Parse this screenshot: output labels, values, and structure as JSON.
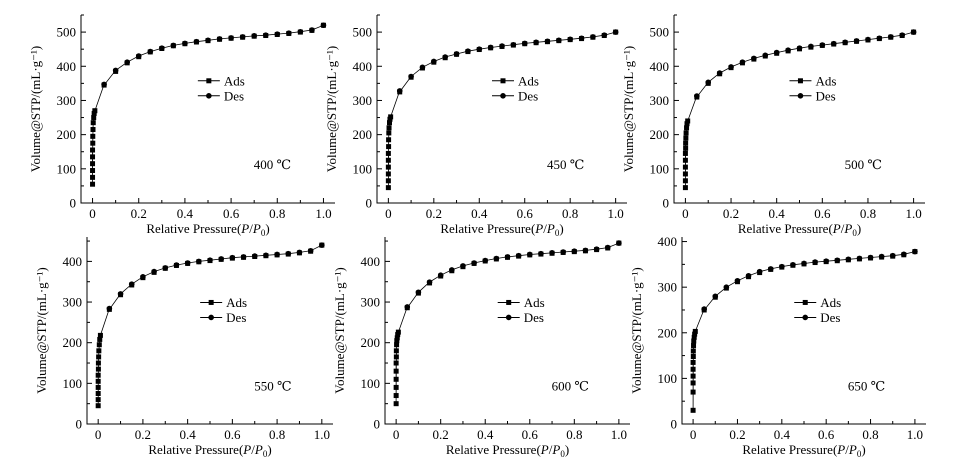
{
  "chart_data": [
    {
      "type": "scatter",
      "annotation": "400 ℃",
      "xlabel": "Relative Pressure(P/P0)",
      "ylabel": "Volume@STP/(mL·g⁻¹)",
      "xlim": [
        -0.05,
        1.05
      ],
      "ylim": [
        0,
        550
      ],
      "xticks": [
        0,
        0.2,
        0.4,
        0.6,
        0.8,
        1.0
      ],
      "xtick_labels": [
        "0",
        "0.2",
        "0.4",
        "0.6",
        "0.8",
        "1.0"
      ],
      "yticks": [
        0,
        100,
        200,
        300,
        400,
        500
      ],
      "ytick_labels": [
        "0",
        "100",
        "200",
        "300",
        "400",
        "500"
      ],
      "legend": [
        "Ads",
        "Des"
      ],
      "series": [
        {
          "name": "Ads",
          "marker": "square",
          "x": [
            0.0,
            0.0,
            0.0,
            0.0,
            0.0,
            0.0,
            0.001,
            0.001,
            0.002,
            0.003,
            0.005,
            0.007,
            0.01,
            0.05,
            0.1,
            0.15,
            0.2,
            0.25,
            0.3,
            0.35,
            0.4,
            0.45,
            0.5,
            0.55,
            0.6,
            0.65,
            0.7,
            0.75,
            0.8,
            0.85,
            0.9,
            0.95,
            1.0
          ],
          "y": [
            55,
            75,
            95,
            115,
            135,
            155,
            175,
            195,
            215,
            235,
            250,
            262,
            270,
            345,
            385,
            410,
            428,
            442,
            452,
            460,
            466,
            471,
            475,
            479,
            482,
            485,
            488,
            490,
            493,
            496,
            500,
            505,
            520
          ]
        },
        {
          "name": "Des",
          "marker": "circle",
          "x": [
            1.0,
            0.95,
            0.9,
            0.85,
            0.8,
            0.75,
            0.7,
            0.65,
            0.6,
            0.55,
            0.5,
            0.45,
            0.4,
            0.35,
            0.3,
            0.25,
            0.2,
            0.15,
            0.1,
            0.05
          ],
          "y": [
            520,
            506,
            501,
            497,
            494,
            491,
            489,
            486,
            483,
            480,
            476,
            472,
            467,
            461,
            453,
            443,
            430,
            412,
            388,
            347
          ]
        }
      ]
    },
    {
      "type": "scatter",
      "annotation": "450 ℃",
      "xlabel": "Relative Pressure(P/P0)",
      "ylabel": "Volume@STP/(mL·g⁻¹)",
      "xlim": [
        -0.05,
        1.05
      ],
      "ylim": [
        0,
        550
      ],
      "xticks": [
        0,
        0.2,
        0.4,
        0.6,
        0.8,
        1.0
      ],
      "xtick_labels": [
        "0",
        "0.2",
        "0.4",
        "0.6",
        "0.8",
        "1.0"
      ],
      "yticks": [
        0,
        100,
        200,
        300,
        400,
        500
      ],
      "ytick_labels": [
        "0",
        "100",
        "200",
        "300",
        "400",
        "500"
      ],
      "legend": [
        "Ads",
        "Des"
      ],
      "series": [
        {
          "name": "Ads",
          "marker": "square",
          "x": [
            0.0,
            0.0,
            0.0,
            0.0,
            0.0,
            0.0,
            0.001,
            0.001,
            0.002,
            0.003,
            0.005,
            0.007,
            0.01,
            0.05,
            0.1,
            0.15,
            0.2,
            0.25,
            0.3,
            0.35,
            0.4,
            0.45,
            0.5,
            0.55,
            0.6,
            0.65,
            0.7,
            0.75,
            0.8,
            0.85,
            0.9,
            0.95,
            1.0
          ],
          "y": [
            45,
            65,
            85,
            105,
            125,
            145,
            165,
            185,
            205,
            220,
            235,
            245,
            252,
            325,
            368,
            395,
            412,
            425,
            435,
            443,
            449,
            454,
            458,
            462,
            466,
            469,
            472,
            475,
            478,
            481,
            485,
            490,
            500
          ]
        },
        {
          "name": "Des",
          "marker": "circle",
          "x": [
            1.0,
            0.95,
            0.9,
            0.85,
            0.8,
            0.75,
            0.7,
            0.65,
            0.6,
            0.55,
            0.5,
            0.45,
            0.4,
            0.35,
            0.3,
            0.25,
            0.2,
            0.15,
            0.1,
            0.05
          ],
          "y": [
            500,
            491,
            486,
            482,
            479,
            476,
            473,
            470,
            467,
            463,
            459,
            455,
            450,
            444,
            436,
            427,
            414,
            397,
            370,
            328
          ]
        }
      ]
    },
    {
      "type": "scatter",
      "annotation": "500 ℃",
      "xlabel": "Relative Pressure(P/P0)",
      "ylabel": "Volume@STP/(mL·g⁻¹)",
      "xlim": [
        -0.05,
        1.05
      ],
      "ylim": [
        0,
        550
      ],
      "xticks": [
        0,
        0.2,
        0.4,
        0.6,
        0.8,
        1.0
      ],
      "xtick_labels": [
        "0",
        "0.2",
        "0.4",
        "0.6",
        "0.8",
        "1.0"
      ],
      "yticks": [
        0,
        100,
        200,
        300,
        400,
        500
      ],
      "ytick_labels": [
        "0",
        "100",
        "200",
        "300",
        "400",
        "500"
      ],
      "legend": [
        "Ads",
        "Des"
      ],
      "series": [
        {
          "name": "Ads",
          "marker": "square",
          "x": [
            0.0,
            0.0,
            0.0,
            0.0,
            0.0,
            0.0,
            0.001,
            0.001,
            0.002,
            0.003,
            0.005,
            0.007,
            0.01,
            0.05,
            0.1,
            0.15,
            0.2,
            0.25,
            0.3,
            0.35,
            0.4,
            0.45,
            0.5,
            0.55,
            0.6,
            0.65,
            0.7,
            0.75,
            0.8,
            0.85,
            0.9,
            0.95,
            1.0
          ],
          "y": [
            45,
            65,
            85,
            105,
            125,
            145,
            160,
            175,
            190,
            205,
            220,
            232,
            240,
            310,
            350,
            378,
            396,
            410,
            421,
            430,
            438,
            445,
            451,
            456,
            461,
            465,
            469,
            473,
            477,
            481,
            485,
            490,
            500
          ]
        },
        {
          "name": "Des",
          "marker": "circle",
          "x": [
            1.0,
            0.95,
            0.9,
            0.85,
            0.8,
            0.75,
            0.7,
            0.65,
            0.6,
            0.55,
            0.5,
            0.45,
            0.4,
            0.35,
            0.3,
            0.25,
            0.2,
            0.15,
            0.1,
            0.05
          ],
          "y": [
            500,
            491,
            486,
            482,
            478,
            474,
            470,
            466,
            462,
            458,
            453,
            447,
            440,
            432,
            423,
            412,
            398,
            380,
            353,
            313
          ]
        }
      ]
    },
    {
      "type": "scatter",
      "annotation": "550 ℃",
      "xlabel": "Relative Pressure(P/P0)",
      "ylabel": "Volume@STP/(mL·g⁻¹)",
      "xlim": [
        -0.05,
        1.05
      ],
      "ylim": [
        0,
        460
      ],
      "xticks": [
        0,
        0.2,
        0.4,
        0.6,
        0.8,
        1.0
      ],
      "xtick_labels": [
        "0",
        "0.2",
        "0.4",
        "0.6",
        "0.8",
        "1.0"
      ],
      "yticks": [
        0,
        100,
        200,
        300,
        400
      ],
      "ytick_labels": [
        "0",
        "100",
        "200",
        "300",
        "400"
      ],
      "legend": [
        "Ads",
        "Des"
      ],
      "series": [
        {
          "name": "Ads",
          "marker": "square",
          "x": [
            0.0,
            0.0,
            0.0,
            0.0,
            0.0,
            0.0,
            0.001,
            0.001,
            0.002,
            0.003,
            0.005,
            0.007,
            0.01,
            0.05,
            0.1,
            0.15,
            0.2,
            0.25,
            0.3,
            0.35,
            0.4,
            0.45,
            0.5,
            0.55,
            0.6,
            0.65,
            0.7,
            0.75,
            0.8,
            0.85,
            0.9,
            0.95,
            1.0
          ],
          "y": [
            45,
            60,
            75,
            90,
            105,
            120,
            135,
            150,
            165,
            180,
            195,
            208,
            218,
            282,
            318,
            342,
            360,
            373,
            383,
            390,
            395,
            399,
            402,
            405,
            408,
            410,
            412,
            414,
            416,
            418,
            421,
            425,
            440
          ]
        },
        {
          "name": "Des",
          "marker": "circle",
          "x": [
            1.0,
            0.95,
            0.9,
            0.85,
            0.8,
            0.75,
            0.7,
            0.65,
            0.6,
            0.55,
            0.5,
            0.45,
            0.4,
            0.35,
            0.3,
            0.25,
            0.2,
            0.15,
            0.1,
            0.05
          ],
          "y": [
            440,
            426,
            422,
            419,
            417,
            415,
            413,
            411,
            409,
            406,
            403,
            400,
            396,
            391,
            384,
            375,
            362,
            344,
            320,
            284
          ]
        }
      ]
    },
    {
      "type": "scatter",
      "annotation": "600 ℃",
      "xlabel": "Relative Pressure(P/P0)",
      "ylabel": "Volume@STP/(mL·g⁻¹)",
      "xlim": [
        -0.05,
        1.05
      ],
      "ylim": [
        0,
        460
      ],
      "xticks": [
        0,
        0.2,
        0.4,
        0.6,
        0.8,
        1.0
      ],
      "xtick_labels": [
        "0",
        "0.2",
        "0.4",
        "0.6",
        "0.8",
        "1.0"
      ],
      "yticks": [
        0,
        100,
        200,
        300,
        400
      ],
      "ytick_labels": [
        "0",
        "100",
        "200",
        "300",
        "400"
      ],
      "legend": [
        "Ads",
        "Des"
      ],
      "series": [
        {
          "name": "Ads",
          "marker": "square",
          "x": [
            0.0,
            0.0,
            0.0,
            0.0,
            0.0,
            0.0,
            0.001,
            0.001,
            0.002,
            0.003,
            0.005,
            0.007,
            0.01,
            0.05,
            0.1,
            0.15,
            0.2,
            0.25,
            0.3,
            0.35,
            0.4,
            0.45,
            0.5,
            0.55,
            0.6,
            0.65,
            0.7,
            0.75,
            0.8,
            0.85,
            0.9,
            0.95,
            1.0
          ],
          "y": [
            50,
            70,
            90,
            110,
            130,
            150,
            165,
            180,
            195,
            205,
            212,
            220,
            226,
            286,
            322,
            347,
            364,
            377,
            387,
            395,
            401,
            406,
            410,
            413,
            416,
            418,
            420,
            422,
            424,
            426,
            429,
            433,
            445
          ]
        },
        {
          "name": "Des",
          "marker": "circle",
          "x": [
            1.0,
            0.95,
            0.9,
            0.85,
            0.8,
            0.75,
            0.7,
            0.65,
            0.6,
            0.55,
            0.5,
            0.45,
            0.4,
            0.35,
            0.3,
            0.25,
            0.2,
            0.15,
            0.1,
            0.05
          ],
          "y": [
            445,
            434,
            430,
            427,
            425,
            423,
            421,
            419,
            417,
            414,
            411,
            407,
            402,
            396,
            389,
            379,
            366,
            349,
            324,
            288
          ]
        }
      ]
    },
    {
      "type": "scatter",
      "annotation": "650 ℃",
      "xlabel": "Relative Pressure(P/P0)",
      "ylabel": "Volume@STP/(mL·g⁻¹)",
      "xlim": [
        -0.05,
        1.05
      ],
      "ylim": [
        0,
        410
      ],
      "xticks": [
        0,
        0.2,
        0.4,
        0.6,
        0.8,
        1.0
      ],
      "xtick_labels": [
        "0",
        "0.2",
        "0.4",
        "0.6",
        "0.8",
        "1.0"
      ],
      "yticks": [
        0,
        100,
        200,
        300,
        400
      ],
      "ytick_labels": [
        "0",
        "100",
        "200",
        "300",
        "400"
      ],
      "legend": [
        "Ads",
        "Des"
      ],
      "series": [
        {
          "name": "Ads",
          "marker": "square",
          "x": [
            0.0,
            0.0,
            0.0,
            0.0,
            0.0,
            0.0,
            0.001,
            0.001,
            0.002,
            0.003,
            0.005,
            0.007,
            0.01,
            0.05,
            0.1,
            0.15,
            0.2,
            0.25,
            0.3,
            0.35,
            0.4,
            0.45,
            0.5,
            0.55,
            0.6,
            0.65,
            0.7,
            0.75,
            0.8,
            0.85,
            0.9,
            0.95,
            1.0
          ],
          "y": [
            30,
            70,
            90,
            105,
            120,
            135,
            148,
            160,
            172,
            182,
            190,
            197,
            203,
            250,
            278,
            298,
            312,
            323,
            332,
            339,
            344,
            348,
            351,
            354,
            356,
            358,
            360,
            362,
            364,
            366,
            368,
            371,
            378
          ]
        },
        {
          "name": "Des",
          "marker": "circle",
          "x": [
            1.0,
            0.95,
            0.9,
            0.85,
            0.8,
            0.75,
            0.7,
            0.65,
            0.6,
            0.55,
            0.5,
            0.45,
            0.4,
            0.35,
            0.3,
            0.25,
            0.2,
            0.15,
            0.1,
            0.05
          ],
          "y": [
            378,
            372,
            369,
            367,
            365,
            363,
            361,
            359,
            357,
            355,
            352,
            349,
            345,
            340,
            334,
            325,
            314,
            300,
            280,
            252
          ]
        }
      ]
    }
  ]
}
